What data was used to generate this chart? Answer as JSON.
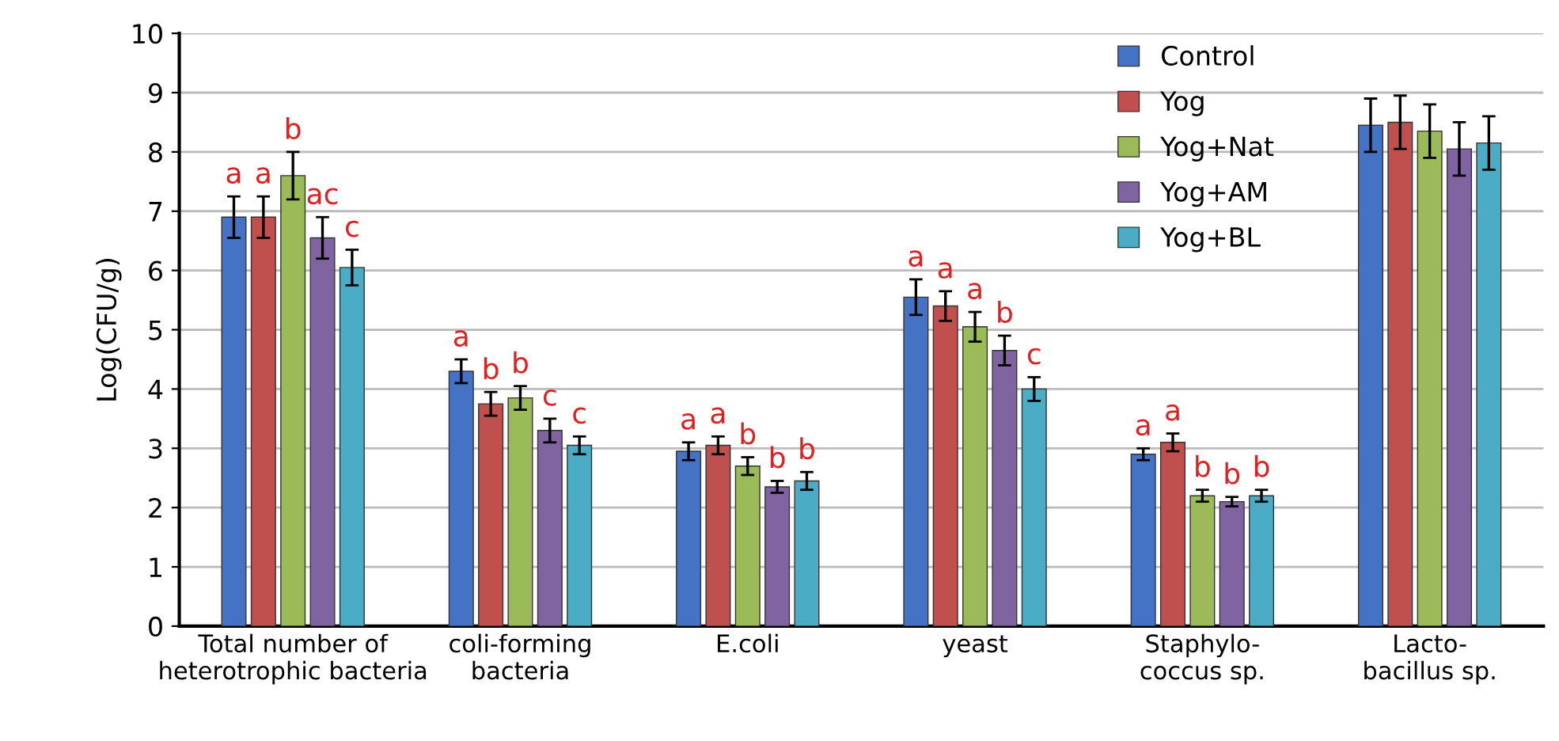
{
  "chart_data": {
    "type": "bar",
    "ylabel": "Log(CFU/g)",
    "categories": [
      "Total number of\nheterotrophic bacteria",
      "coli-forming\nbacteria",
      "E.coli",
      "yeast",
      "Staphylo-\ncoccus sp.",
      "Lacto-\nbacillus sp."
    ],
    "series": [
      {
        "name": "Control",
        "color": "#4472c4",
        "values": [
          6.9,
          4.3,
          2.95,
          5.55,
          2.9,
          8.45
        ],
        "errors": [
          0.35,
          0.2,
          0.15,
          0.3,
          0.1,
          0.45
        ],
        "value_labels": [
          "a",
          "a",
          "a",
          "a",
          "a",
          null
        ]
      },
      {
        "name": "Yog",
        "color": "#c0504d",
        "values": [
          6.9,
          3.75,
          3.05,
          5.4,
          3.1,
          8.5
        ],
        "errors": [
          0.35,
          0.2,
          0.15,
          0.25,
          0.15,
          0.45
        ],
        "value_labels": [
          "a",
          "b",
          "a",
          "a",
          "a",
          null
        ]
      },
      {
        "name": "Yog+Nat",
        "color": "#9bbb59",
        "values": [
          7.6,
          3.85,
          2.7,
          5.05,
          2.2,
          8.35
        ],
        "errors": [
          0.4,
          0.2,
          0.15,
          0.25,
          0.1,
          0.45
        ],
        "value_labels": [
          "b",
          "b",
          "b",
          "a",
          "b",
          null
        ]
      },
      {
        "name": "Yog+AM",
        "color": "#8064a2",
        "values": [
          6.55,
          3.3,
          2.35,
          4.65,
          2.1,
          8.05
        ],
        "errors": [
          0.35,
          0.2,
          0.1,
          0.25,
          0.08,
          0.45
        ],
        "value_labels": [
          "ac",
          "c",
          "b",
          "b",
          "b",
          null
        ]
      },
      {
        "name": "Yog+BL",
        "color": "#4bacc6",
        "values": [
          6.05,
          3.05,
          2.45,
          4.0,
          2.2,
          8.15
        ],
        "errors": [
          0.3,
          0.15,
          0.15,
          0.2,
          0.1,
          0.45
        ],
        "value_labels": [
          "c",
          "c",
          "b",
          "c",
          "b",
          null
        ]
      }
    ],
    "ylim": [
      0,
      10
    ],
    "yticks": [
      0,
      1,
      2,
      3,
      4,
      5,
      6,
      7,
      8,
      9,
      10
    ],
    "grid": "y",
    "legend": "top right"
  }
}
